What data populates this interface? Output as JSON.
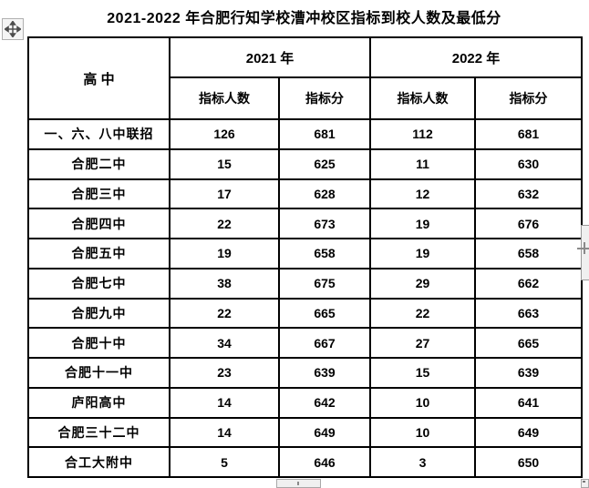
{
  "title": "2021-2022 年合肥行知学校漕冲校区指标到校人数及最低分",
  "table": {
    "school_header": "高  中",
    "year_2021": "2021 年",
    "year_2022": "2022 年",
    "quota_header": "指标人数",
    "score_header": "指标分",
    "rows": [
      {
        "school": "一、六、八中联招",
        "q21": "126",
        "s21": "681",
        "q22": "112",
        "s22": "681"
      },
      {
        "school": "合肥二中",
        "q21": "15",
        "s21": "625",
        "q22": "11",
        "s22": "630"
      },
      {
        "school": "合肥三中",
        "q21": "17",
        "s21": "628",
        "q22": "12",
        "s22": "632"
      },
      {
        "school": "合肥四中",
        "q21": "22",
        "s21": "673",
        "q22": "19",
        "s22": "676"
      },
      {
        "school": "合肥五中",
        "q21": "19",
        "s21": "658",
        "q22": "19",
        "s22": "658"
      },
      {
        "school": "合肥七中",
        "q21": "38",
        "s21": "675",
        "q22": "29",
        "s22": "662"
      },
      {
        "school": "合肥九中",
        "q21": "22",
        "s21": "665",
        "q22": "22",
        "s22": "663"
      },
      {
        "school": "合肥十中",
        "q21": "34",
        "s21": "667",
        "q22": "27",
        "s22": "665"
      },
      {
        "school": "合肥十一中",
        "q21": "23",
        "s21": "639",
        "q22": "15",
        "s22": "639"
      },
      {
        "school": "庐阳高中",
        "q21": "14",
        "s21": "642",
        "q22": "10",
        "s22": "641"
      },
      {
        "school": "合肥三十二中",
        "q21": "14",
        "s21": "649",
        "q22": "10",
        "s22": "649"
      },
      {
        "school": "合工大附中",
        "q21": "5",
        "s21": "646",
        "q22": "3",
        "s22": "650"
      }
    ]
  },
  "colors": {
    "accent_red": "#ff0000",
    "border_black": "#000000",
    "handle_gray": "#f0f0f0"
  },
  "icons": {
    "table_move": "four-way-move-arrow",
    "split_plus": "+",
    "corner_resize": "small-square-handle"
  }
}
